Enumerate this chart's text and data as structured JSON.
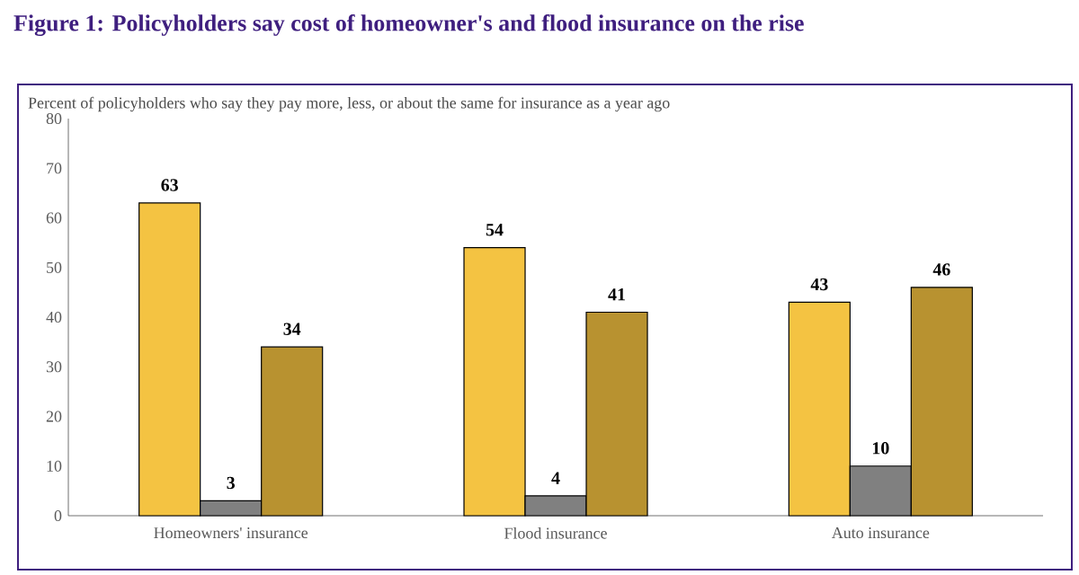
{
  "chart_data": {
    "type": "bar",
    "title": "Figure 1: Policyholders say cost of homeowner's and flood insurance on the rise",
    "ylabel": "Percent of policyholders who say they pay more, less, or about the same for insurance as a year ago",
    "categories": [
      "Homeowners' insurance",
      "Flood insurance",
      "Auto insurance"
    ],
    "series": [
      {
        "color": "#f4c342",
        "values": [
          63,
          54,
          43
        ]
      },
      {
        "color": "#808080",
        "values": [
          3,
          4,
          10
        ]
      },
      {
        "color": "#b89230",
        "values": [
          34,
          41,
          46
        ]
      }
    ],
    "ylim": [
      0,
      80
    ],
    "yticks": [
      0,
      10,
      20,
      30,
      40,
      50,
      60,
      70,
      80
    ],
    "grid": false,
    "data_labels": true
  }
}
